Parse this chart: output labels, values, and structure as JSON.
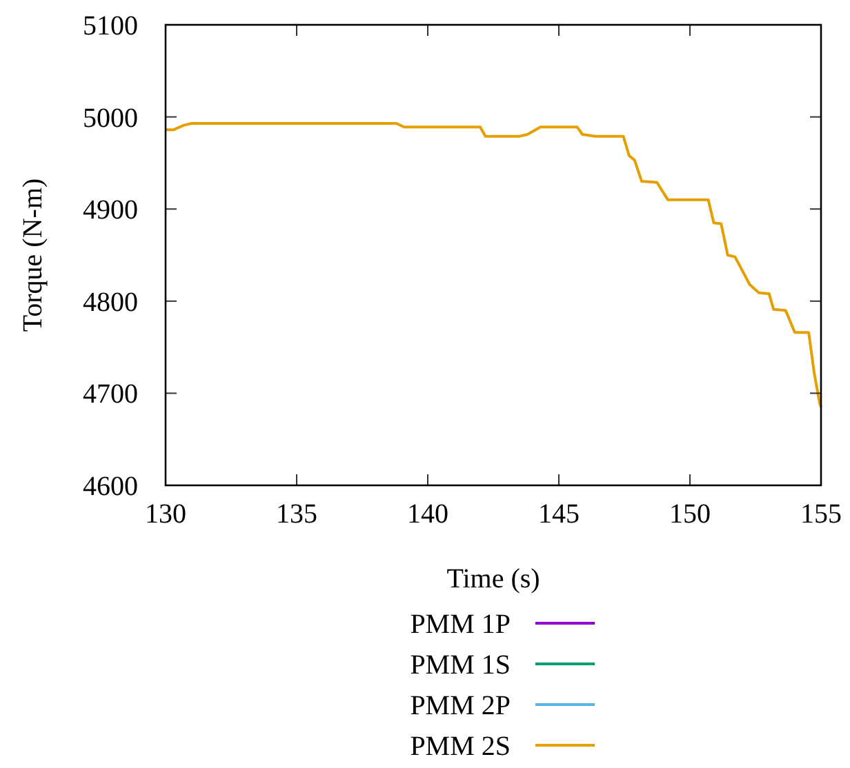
{
  "chart_data": {
    "type": "line",
    "xlabel": "Time (s)",
    "ylabel": "Torque (N-m)",
    "x": [
      130,
      130.3,
      130.7,
      131,
      138.8,
      139.1,
      142,
      142.2,
      143.5,
      143.8,
      144.3,
      145.7,
      145.9,
      146.4,
      147.46,
      147.68,
      147.89,
      148.16,
      148.74,
      149.16,
      150.7,
      150.91,
      151.19,
      151.44,
      151.72,
      152.28,
      152.63,
      153.02,
      153.19,
      153.65,
      154.0,
      154.53,
      154.74,
      154.95,
      155
    ],
    "xlim": [
      130,
      155
    ],
    "xticks": [
      130,
      135,
      140,
      145,
      150,
      155
    ],
    "ylim": [
      4600,
      5100
    ],
    "yticks": [
      4600,
      4700,
      4800,
      4900,
      5000,
      5100
    ],
    "grid": false,
    "legend": "bottom",
    "line_style": "solid",
    "marker": "none",
    "series": [
      {
        "name": "PMM 1P",
        "color": "#9400d3",
        "values": [
          null,
          null,
          null,
          null,
          null,
          null,
          null,
          null,
          null,
          null,
          null,
          null,
          null,
          null,
          null,
          null,
          null,
          null,
          null,
          null,
          null,
          null,
          null,
          null,
          null,
          null,
          null,
          null,
          null,
          null,
          null,
          null,
          null,
          null,
          null
        ]
      },
      {
        "name": "PMM 1S",
        "color": "#009e73",
        "values": [
          null,
          null,
          null,
          null,
          null,
          null,
          null,
          null,
          null,
          null,
          null,
          null,
          null,
          null,
          null,
          null,
          null,
          null,
          null,
          null,
          null,
          null,
          null,
          null,
          null,
          null,
          null,
          null,
          null,
          null,
          null,
          null,
          null,
          null,
          null
        ]
      },
      {
        "name": "PMM 2P",
        "color": "#56b4e9",
        "values": [
          null,
          null,
          null,
          null,
          null,
          null,
          null,
          null,
          null,
          null,
          null,
          null,
          null,
          null,
          null,
          null,
          null,
          null,
          null,
          null,
          null,
          null,
          null,
          null,
          null,
          null,
          null,
          null,
          null,
          null,
          null,
          null,
          null,
          null,
          null
        ]
      },
      {
        "name": "PMM 2S",
        "color": "#e69f00",
        "values": [
          4986,
          4986,
          4991,
          4993,
          4993,
          4989,
          4989,
          4979,
          4979,
          4981,
          4989,
          4989,
          4981,
          4979,
          4979,
          4958,
          4953,
          4930,
          4929,
          4910,
          4910,
          4885,
          4884,
          4850,
          4848,
          4818,
          4809,
          4808,
          4791,
          4790,
          4766,
          4766,
          4722,
          4689,
          4685
        ]
      }
    ]
  }
}
